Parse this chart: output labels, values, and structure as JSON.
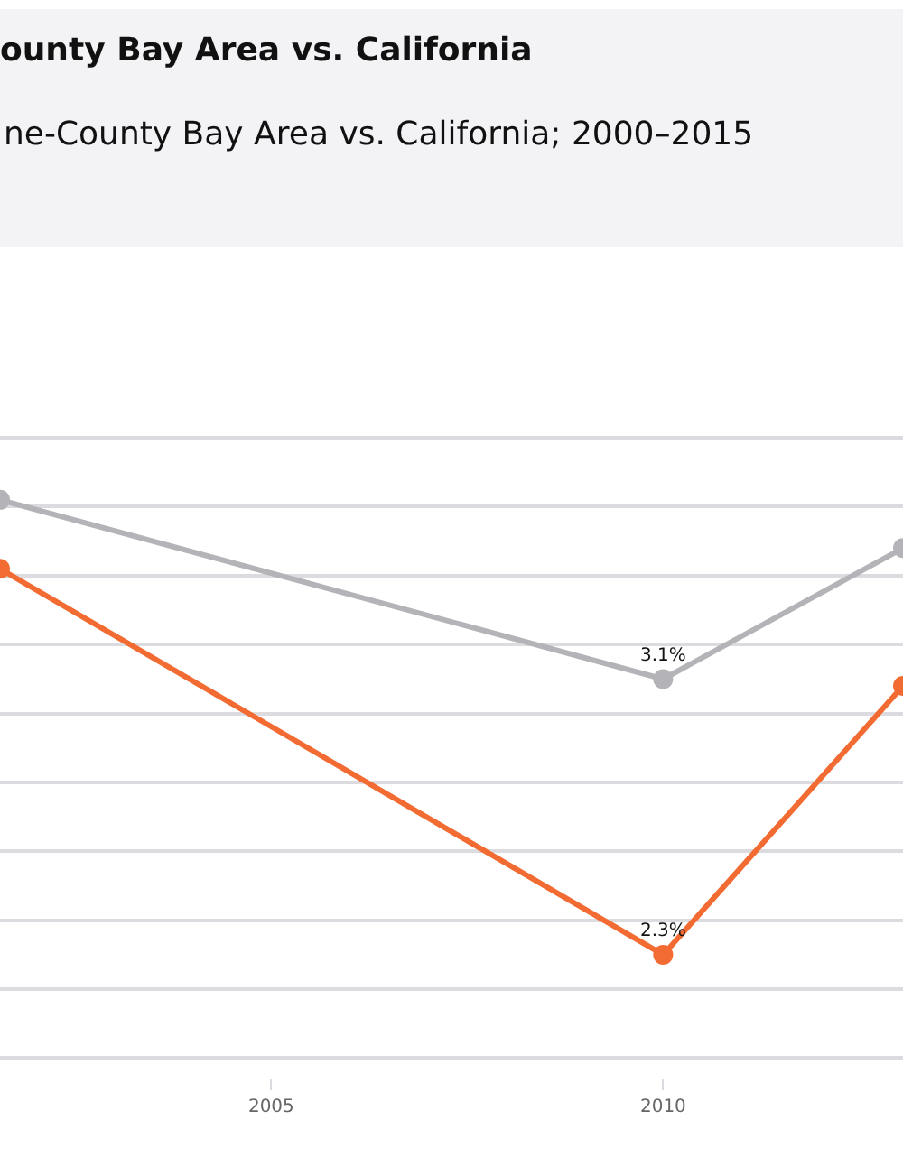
{
  "chart_data": {
    "type": "line",
    "title": "ounty Bay Area vs. California",
    "subtitle": "ne-County Bay Area vs. California; 2000–2015",
    "x": [
      2001.54,
      2010,
      2013.06
    ],
    "series": [
      {
        "color": "#b4b4b8",
        "values": [
          3.62,
          3.1,
          3.48
        ],
        "value_labels": [
          null,
          "3.1%",
          null
        ]
      },
      {
        "color": "#f26b32",
        "values": [
          3.42,
          2.3,
          3.08
        ],
        "value_labels": [
          null,
          "2.3%",
          null
        ]
      }
    ],
    "xlim": [
      2001.54,
      2013.06
    ],
    "xticks": [
      2005,
      2010
    ],
    "tick_labels": "x",
    "grid": "y",
    "marker": "circle",
    "line_style": "solid"
  }
}
